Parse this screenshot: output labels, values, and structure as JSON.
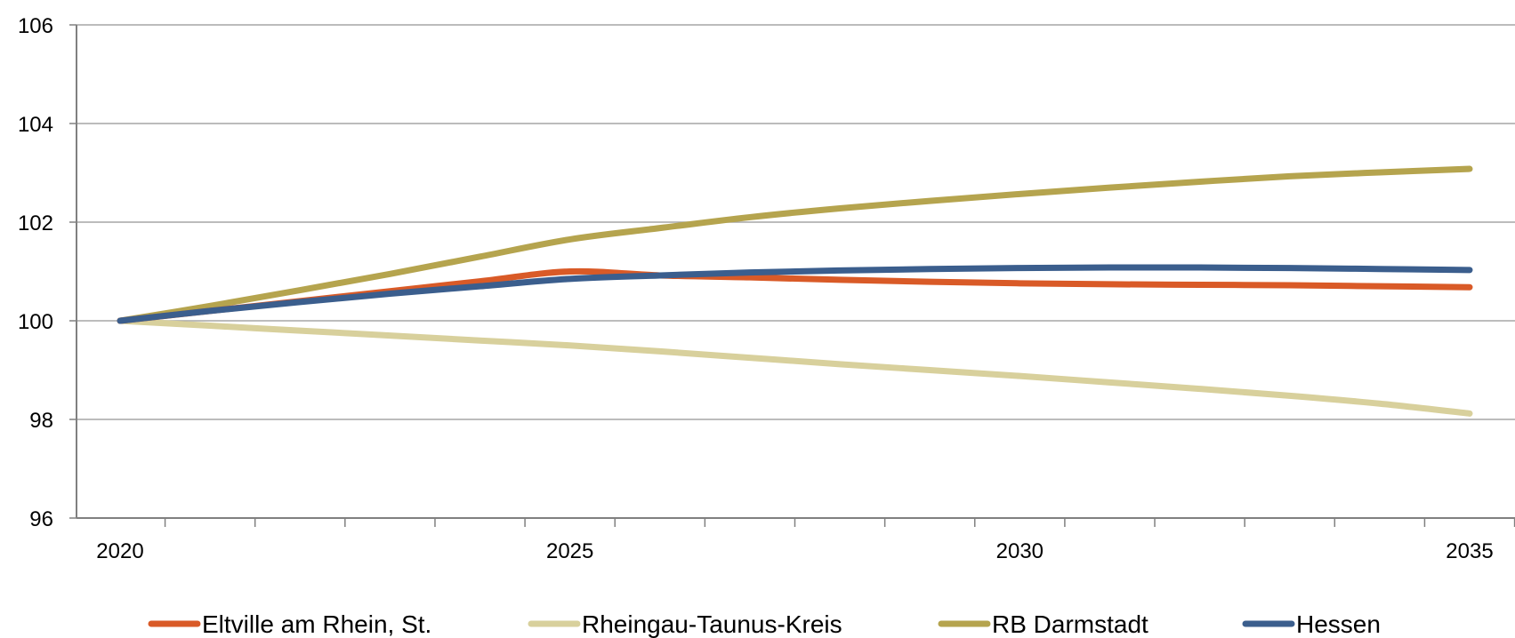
{
  "chart_data": {
    "type": "line",
    "x": [
      2020,
      2021,
      2022,
      2023,
      2024,
      2025,
      2026,
      2027,
      2028,
      2029,
      2030,
      2031,
      2032,
      2033,
      2034,
      2035
    ],
    "xticks_labeled": [
      2020,
      2025,
      2030,
      2035
    ],
    "xlim": [
      2019.5,
      2036
    ],
    "ylim": [
      96,
      106
    ],
    "yticks": [
      96,
      98,
      100,
      102,
      104,
      106
    ],
    "grid": true,
    "legend_position": "bottom",
    "series": [
      {
        "name": "Eltville am Rhein, St.",
        "color": "#D95A27",
        "values": [
          100.0,
          100.2,
          100.4,
          100.6,
          100.8,
          101.0,
          100.92,
          100.88,
          100.83,
          100.79,
          100.76,
          100.74,
          100.73,
          100.72,
          100.7,
          100.68
        ]
      },
      {
        "name": "Rheingau-Taunus-Kreis",
        "color": "#D8D09C",
        "values": [
          100.0,
          99.9,
          99.8,
          99.7,
          99.6,
          99.5,
          99.38,
          99.25,
          99.12,
          99.0,
          98.88,
          98.75,
          98.62,
          98.48,
          98.32,
          98.12
        ]
      },
      {
        "name": "RB Darmstadt",
        "color": "#B5A44E",
        "values": [
          100.0,
          100.3,
          100.62,
          100.95,
          101.3,
          101.65,
          101.88,
          102.1,
          102.28,
          102.43,
          102.57,
          102.7,
          102.82,
          102.93,
          103.01,
          103.08
        ]
      },
      {
        "name": "Hessen",
        "color": "#3B5E8D",
        "values": [
          100.0,
          100.2,
          100.38,
          100.55,
          100.7,
          100.85,
          100.92,
          100.98,
          101.02,
          101.05,
          101.07,
          101.08,
          101.08,
          101.07,
          101.05,
          101.03
        ]
      }
    ]
  }
}
